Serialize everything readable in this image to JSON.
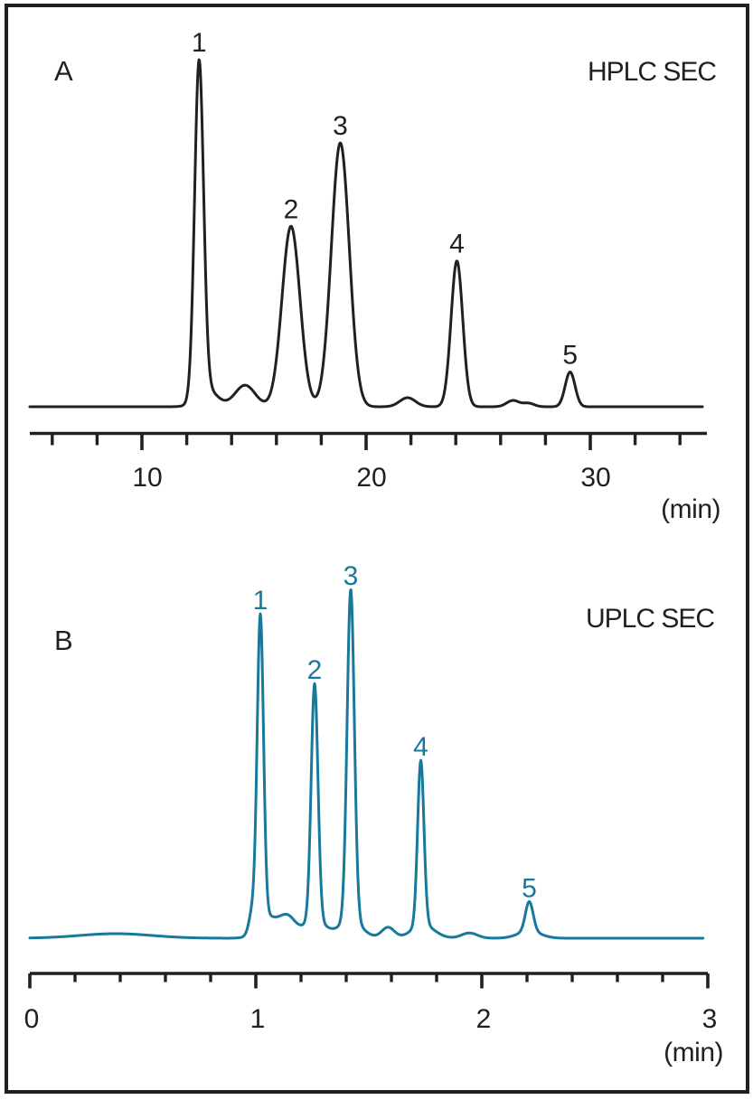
{
  "figure": {
    "background": "#ffffff",
    "frame_color": "#231f20",
    "text_color": "#231f20"
  },
  "panels": {
    "a": {
      "letter": "A",
      "method": "HPLC SEC",
      "unit": "(min)"
    },
    "b": {
      "letter": "B",
      "method": "UPLC SEC",
      "unit": "(min)"
    }
  },
  "chart_data": [
    {
      "type": "line",
      "panel": "A",
      "title": "HPLC SEC",
      "line_color": "#231f20",
      "peak_label_color": "#231f20",
      "axis_color": "#231f20",
      "x_axis": {
        "unit_label": "(min)",
        "range": [
          5,
          35.2
        ],
        "major_ticks": [
          {
            "t": 10,
            "label": "10"
          },
          {
            "t": 20,
            "label": "20"
          },
          {
            "t": 30,
            "label": "30"
          }
        ],
        "minor_ticks": [
          6,
          8,
          12,
          14,
          16,
          18,
          22,
          24,
          26,
          28,
          32,
          34
        ]
      },
      "y_axis": {
        "visible": false,
        "note": "relative detector response, unlabeled"
      },
      "peaks": [
        {
          "label": "1",
          "t": 12.55,
          "rel_height": 1.0,
          "sigma": 0.2
        },
        {
          "label": "2",
          "t": 16.65,
          "rel_height": 0.52,
          "sigma": 0.4
        },
        {
          "label": "3",
          "t": 18.85,
          "rel_height": 0.76,
          "sigma": 0.4
        },
        {
          "label": "4",
          "t": 24.05,
          "rel_height": 0.42,
          "sigma": 0.26
        },
        {
          "label": "5",
          "t": 29.1,
          "rel_height": 0.1,
          "sigma": 0.22
        }
      ],
      "minor_features": [
        {
          "t": 12.9,
          "rel_height": 0.05,
          "sigma": 0.45
        },
        {
          "t": 14.6,
          "rel_height": 0.062,
          "sigma": 0.45
        },
        {
          "t": 21.85,
          "rel_height": 0.026,
          "sigma": 0.35
        },
        {
          "t": 26.55,
          "rel_height": 0.018,
          "sigma": 0.28
        },
        {
          "t": 27.25,
          "rel_height": 0.01,
          "sigma": 0.25
        }
      ],
      "trace_range": [
        5.0,
        35.0
      ]
    },
    {
      "type": "line",
      "panel": "B",
      "title": "UPLC SEC",
      "line_color": "#17799c",
      "peak_label_color": "#17799c",
      "axis_color": "#231f20",
      "x_axis": {
        "unit_label": "(min)",
        "range": [
          0,
          3
        ],
        "major_ticks": [
          {
            "t": 0,
            "label": "0"
          },
          {
            "t": 1,
            "label": "1"
          },
          {
            "t": 2,
            "label": "2"
          },
          {
            "t": 3,
            "label": "3"
          }
        ],
        "minor_ticks": [
          0.2,
          0.4,
          0.6,
          0.8,
          1.2,
          1.4,
          1.6,
          1.8,
          2.2,
          2.4,
          2.6,
          2.8
        ]
      },
      "y_axis": {
        "visible": false,
        "note": "relative detector response, unlabeled"
      },
      "peaks": [
        {
          "label": "1",
          "t": 1.02,
          "rel_height": 0.93,
          "sigma": 0.014
        },
        {
          "label": "2",
          "t": 1.26,
          "rel_height": 0.73,
          "sigma": 0.015
        },
        {
          "label": "3",
          "t": 1.42,
          "rel_height": 1.0,
          "sigma": 0.016
        },
        {
          "label": "4",
          "t": 1.73,
          "rel_height": 0.51,
          "sigma": 0.014
        },
        {
          "label": "5",
          "t": 2.21,
          "rel_height": 0.105,
          "sigma": 0.017
        }
      ],
      "minor_features": [
        {
          "t": 0.38,
          "rel_height": 0.013,
          "sigma": 0.16
        },
        {
          "t": 0.985,
          "rel_height": 0.06,
          "sigma": 0.015
        },
        {
          "t": 1.05,
          "rel_height": 0.06,
          "sigma": 0.045
        },
        {
          "t": 1.14,
          "rel_height": 0.057,
          "sigma": 0.035
        },
        {
          "t": 1.26,
          "rel_height": 0.05,
          "sigma": 0.05
        },
        {
          "t": 1.42,
          "rel_height": 0.05,
          "sigma": 0.05
        },
        {
          "t": 1.585,
          "rel_height": 0.031,
          "sigma": 0.028
        },
        {
          "t": 1.74,
          "rel_height": 0.038,
          "sigma": 0.05
        },
        {
          "t": 1.945,
          "rel_height": 0.015,
          "sigma": 0.035
        },
        {
          "t": 2.21,
          "rel_height": 0.02,
          "sigma": 0.05
        }
      ],
      "trace_range": [
        0.0,
        2.98
      ]
    }
  ]
}
